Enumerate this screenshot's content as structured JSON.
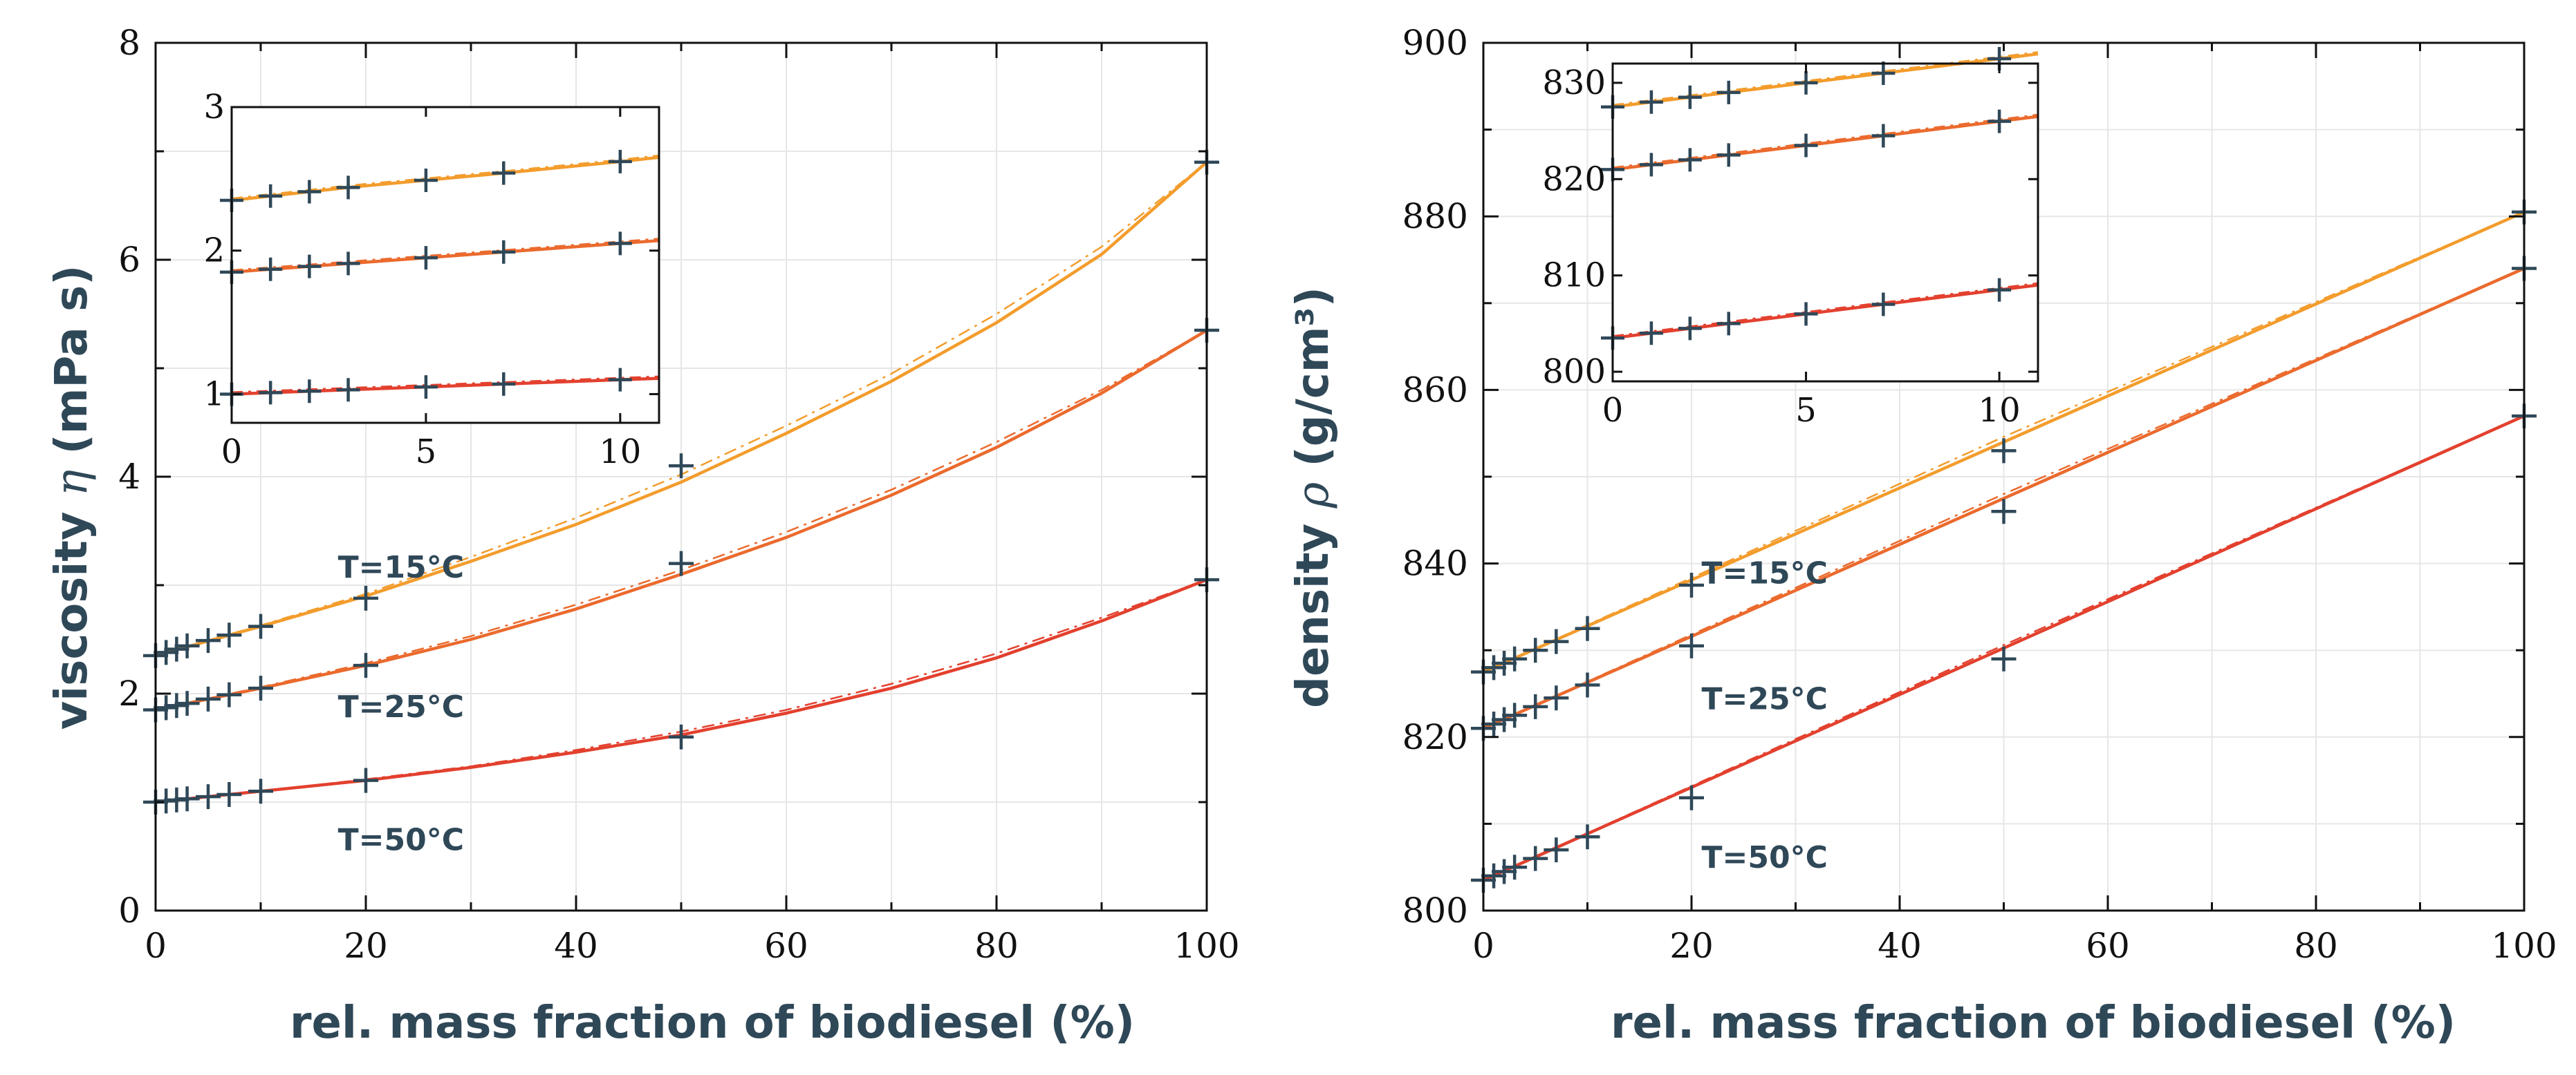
{
  "colors": {
    "T15": "#f39c2c",
    "T25": "#eb6a2d",
    "T50": "#e3402e",
    "marker": "#2f4858",
    "text": "#2f4858",
    "grid": "#e6e6e6",
    "axis": "#111111"
  },
  "chart_data": [
    {
      "type": "line",
      "xlabel": "rel. mass fraction of biodiesel (%)",
      "ylabel_text": "viscosity",
      "ylabel_symbol": "η",
      "ylabel_unit": "(mPa s)",
      "xlim": [
        0,
        100
      ],
      "ylim": [
        0,
        8
      ],
      "xticks": [
        0,
        20,
        40,
        60,
        80,
        100
      ],
      "yticks": [
        0,
        2,
        4,
        6,
        8
      ],
      "grid": true,
      "series": [
        {
          "name": "T=15°C",
          "color_key": "T15",
          "x": [
            0,
            1,
            2,
            3,
            5,
            7,
            10,
            20,
            50,
            100
          ],
          "y": [
            2.35,
            2.38,
            2.41,
            2.44,
            2.49,
            2.54,
            2.62,
            2.88,
            4.1,
            6.9
          ],
          "fit": [
            [
              0,
              2.35
            ],
            [
              10,
              2.62
            ],
            [
              20,
              2.9
            ],
            [
              30,
              3.22
            ],
            [
              40,
              3.56
            ],
            [
              50,
              3.95
            ],
            [
              60,
              4.4
            ],
            [
              70,
              4.88
            ],
            [
              80,
              5.42
            ],
            [
              90,
              6.05
            ],
            [
              100,
              6.9
            ]
          ],
          "fit_dashed": [
            [
              0,
              2.35
            ],
            [
              10,
              2.63
            ],
            [
              20,
              2.92
            ],
            [
              30,
              3.26
            ],
            [
              40,
              3.62
            ],
            [
              50,
              4.02
            ],
            [
              60,
              4.47
            ],
            [
              70,
              4.95
            ],
            [
              80,
              5.5
            ],
            [
              90,
              6.12
            ],
            [
              100,
              6.9
            ]
          ]
        },
        {
          "name": "T=25°C",
          "color_key": "T25",
          "x": [
            0,
            1,
            2,
            3,
            5,
            7,
            10,
            20,
            50,
            100
          ],
          "y": [
            1.85,
            1.87,
            1.89,
            1.91,
            1.95,
            1.99,
            2.05,
            2.26,
            3.2,
            5.35
          ],
          "fit": [
            [
              0,
              1.85
            ],
            [
              10,
              2.05
            ],
            [
              20,
              2.26
            ],
            [
              30,
              2.5
            ],
            [
              40,
              2.78
            ],
            [
              50,
              3.1
            ],
            [
              60,
              3.44
            ],
            [
              70,
              3.83
            ],
            [
              80,
              4.27
            ],
            [
              90,
              4.77
            ],
            [
              100,
              5.35
            ]
          ],
          "fit_dashed": [
            [
              0,
              1.85
            ],
            [
              10,
              2.06
            ],
            [
              20,
              2.28
            ],
            [
              30,
              2.53
            ],
            [
              40,
              2.82
            ],
            [
              50,
              3.14
            ],
            [
              60,
              3.49
            ],
            [
              70,
              3.88
            ],
            [
              80,
              4.32
            ],
            [
              90,
              4.8
            ],
            [
              100,
              5.35
            ]
          ]
        },
        {
          "name": "T=50°C",
          "color_key": "T50",
          "x": [
            0,
            1,
            2,
            3,
            5,
            7,
            10,
            20,
            50,
            100
          ],
          "y": [
            1.0,
            1.01,
            1.02,
            1.03,
            1.05,
            1.07,
            1.1,
            1.2,
            1.6,
            3.05
          ],
          "fit": [
            [
              0,
              1.0
            ],
            [
              10,
              1.1
            ],
            [
              20,
              1.2
            ],
            [
              30,
              1.32
            ],
            [
              40,
              1.46
            ],
            [
              50,
              1.62
            ],
            [
              60,
              1.82
            ],
            [
              70,
              2.05
            ],
            [
              80,
              2.33
            ],
            [
              90,
              2.67
            ],
            [
              100,
              3.05
            ]
          ],
          "fit_dashed": [
            [
              0,
              1.0
            ],
            [
              10,
              1.1
            ],
            [
              20,
              1.21
            ],
            [
              30,
              1.33
            ],
            [
              40,
              1.48
            ],
            [
              50,
              1.65
            ],
            [
              60,
              1.85
            ],
            [
              70,
              2.09
            ],
            [
              80,
              2.37
            ],
            [
              90,
              2.7
            ],
            [
              100,
              3.05
            ]
          ]
        }
      ],
      "inset": {
        "xlim": [
          0,
          11
        ],
        "ylim": [
          0.8,
          3.0
        ],
        "xticks": [
          0,
          5,
          10
        ],
        "yticks": [
          1,
          2,
          3
        ],
        "series": [
          {
            "color_key": "T15",
            "x": [
              0,
              1,
              2,
              3,
              5,
              7,
              10
            ],
            "y": [
              2.35,
              2.38,
              2.41,
              2.44,
              2.49,
              2.54,
              2.62
            ],
            "end": [
              11,
              2.65
            ]
          },
          {
            "color_key": "T25",
            "x": [
              0,
              1,
              2,
              3,
              5,
              7,
              10
            ],
            "y": [
              1.85,
              1.87,
              1.89,
              1.91,
              1.95,
              1.99,
              2.05
            ],
            "end": [
              11,
              2.07
            ]
          },
          {
            "color_key": "T50",
            "x": [
              0,
              1,
              2,
              3,
              5,
              7,
              10
            ],
            "y": [
              1.0,
              1.01,
              1.02,
              1.03,
              1.05,
              1.07,
              1.1
            ],
            "end": [
              11,
              1.11
            ]
          }
        ]
      }
    },
    {
      "type": "line",
      "xlabel": "rel. mass fraction of biodiesel (%)",
      "ylabel_text": "density",
      "ylabel_symbol": "ρ",
      "ylabel_unit": "(g/cm³)",
      "xlim": [
        0,
        100
      ],
      "ylim": [
        800,
        900
      ],
      "xticks": [
        0,
        20,
        40,
        60,
        80,
        100
      ],
      "yticks": [
        800,
        820,
        840,
        860,
        880,
        900
      ],
      "grid": true,
      "series": [
        {
          "name": "T=15°C",
          "color_key": "T15",
          "x": [
            0,
            1,
            2,
            3,
            5,
            7,
            10,
            20,
            50,
            100
          ],
          "y": [
            827.5,
            828.0,
            828.5,
            829.0,
            830.0,
            831.0,
            832.5,
            837.5,
            853.0,
            880.5
          ],
          "fit": [
            [
              0,
              827.5
            ],
            [
              100,
              880.5
            ]
          ],
          "fit_dashed": [
            [
              0,
              827.5
            ],
            [
              50,
              854.6
            ],
            [
              100,
              880.5
            ]
          ]
        },
        {
          "name": "T=25°C",
          "color_key": "T25",
          "x": [
            0,
            1,
            2,
            3,
            5,
            7,
            10,
            20,
            50,
            100
          ],
          "y": [
            821.0,
            821.5,
            822.0,
            822.5,
            823.5,
            824.5,
            826.0,
            830.5,
            846.0,
            874.0
          ],
          "fit": [
            [
              0,
              821.0
            ],
            [
              100,
              874.0
            ]
          ],
          "fit_dashed": [
            [
              0,
              821.0
            ],
            [
              50,
              848.0
            ],
            [
              100,
              874.0
            ]
          ]
        },
        {
          "name": "T=50°C",
          "color_key": "T50",
          "x": [
            0,
            1,
            2,
            3,
            5,
            7,
            10,
            20,
            50,
            100
          ],
          "y": [
            803.5,
            804.0,
            804.5,
            805.0,
            806.0,
            807.0,
            808.5,
            813.0,
            829.0,
            857.0
          ],
          "fit": [
            [
              0,
              803.5
            ],
            [
              100,
              857.0
            ]
          ],
          "fit_dashed": [
            [
              0,
              803.5
            ],
            [
              50,
              830.6
            ],
            [
              100,
              857.0
            ]
          ]
        }
      ],
      "inset": {
        "xlim": [
          0,
          11
        ],
        "ylim": [
          799,
          832
        ],
        "xticks": [
          0,
          5,
          10
        ],
        "yticks": [
          800,
          810,
          820,
          830
        ],
        "series": [
          {
            "color_key": "T15",
            "x": [
              0,
              1,
              2,
              3,
              5,
              7,
              10
            ],
            "y": [
              827.5,
              828.0,
              828.5,
              829.0,
              830.0,
              831.0,
              832.5
            ],
            "end": [
              11,
              833.0
            ]
          },
          {
            "color_key": "T25",
            "x": [
              0,
              1,
              2,
              3,
              5,
              7,
              10
            ],
            "y": [
              821.0,
              821.5,
              822.0,
              822.5,
              823.5,
              824.5,
              826.0
            ],
            "end": [
              11,
              826.5
            ]
          },
          {
            "color_key": "T50",
            "x": [
              0,
              1,
              2,
              3,
              5,
              7,
              10
            ],
            "y": [
              803.5,
              804.0,
              804.5,
              805.0,
              806.0,
              807.0,
              808.5
            ],
            "end": [
              11,
              809.0
            ]
          }
        ]
      }
    }
  ]
}
